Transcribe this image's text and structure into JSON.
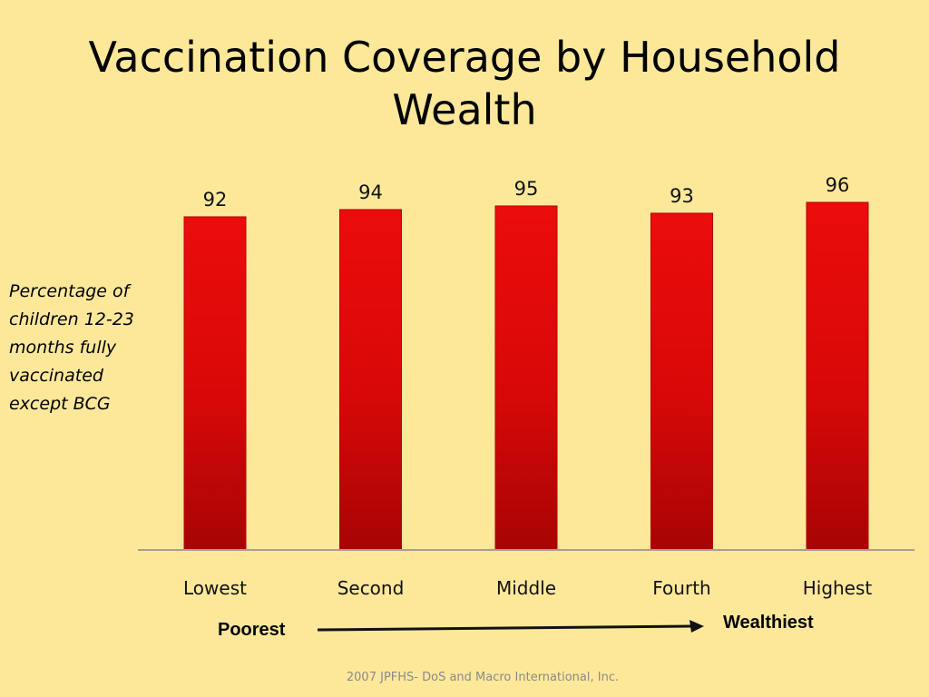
{
  "slide": {
    "title": "Vaccination Coverage by Household Wealth",
    "source": "2007 JPFHS- DoS and Macro International, Inc."
  },
  "chart_data": {
    "type": "bar",
    "title": "Vaccination Coverage by Household Wealth",
    "ylabel": "Percentage of children 12-23 months fully vaccinated except BCG",
    "xlabel": "",
    "categories": [
      "Lowest",
      "Second",
      "Middle",
      "Fourth",
      "Highest"
    ],
    "values": [
      92,
      94,
      95,
      93,
      96
    ],
    "data_labels": true,
    "grid": false,
    "legend": "none",
    "bar_color": "#dd0a0a",
    "annotations": {
      "left": "Poorest",
      "right": "Wealthiest",
      "arrow": "left-to-right"
    }
  }
}
